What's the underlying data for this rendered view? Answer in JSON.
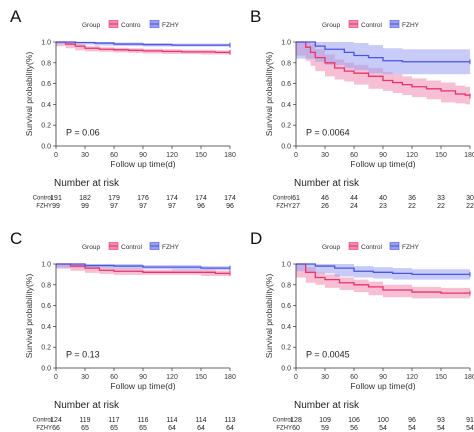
{
  "colors": {
    "control": "#e8336b",
    "fzhy": "#4a55e0",
    "control_band": "#f08ab0",
    "fzhy_band": "#9aa0f0"
  },
  "legend": {
    "title": "Group",
    "control_label": "Control",
    "fzhy_label": "FZHY"
  },
  "risk_row_labels": {
    "control": "Control",
    "fzhy": "FZHY"
  },
  "chart_data": [
    {
      "panel": "A",
      "type": "line",
      "legend_control_label": "Contro",
      "xlabel": "Follow up time(d)",
      "ylabel": "Survival probability(%)",
      "xlim": [
        0,
        180
      ],
      "ylim": [
        0,
        1
      ],
      "x_ticks": [
        0,
        30,
        60,
        90,
        120,
        150,
        180
      ],
      "y_ticks": [
        0.0,
        0.2,
        0.4,
        0.6,
        0.8,
        1.0
      ],
      "pvalue": "P = 0.06",
      "series": [
        {
          "name": "Control",
          "x": [
            0,
            10,
            20,
            30,
            45,
            60,
            75,
            90,
            110,
            130,
            150,
            165,
            180
          ],
          "y": [
            1.0,
            0.98,
            0.96,
            0.94,
            0.93,
            0.925,
            0.92,
            0.915,
            0.91,
            0.905,
            0.905,
            0.9,
            0.9
          ],
          "band": 0.02
        },
        {
          "name": "FZHY",
          "x": [
            0,
            20,
            40,
            60,
            90,
            120,
            150,
            180
          ],
          "y": [
            1.0,
            0.995,
            0.99,
            0.98,
            0.975,
            0.97,
            0.97,
            0.97
          ],
          "band": 0.015
        }
      ],
      "risk": {
        "title": "Number at risk",
        "control": [
          "191",
          "182",
          "179",
          "176",
          "174",
          "174",
          "174"
        ],
        "fzhy": [
          "99",
          "99",
          "97",
          "97",
          "97",
          "96",
          "96"
        ]
      }
    },
    {
      "panel": "B",
      "type": "line",
      "legend_control_label": "Control",
      "xlabel": "Follow up time(d)",
      "ylabel": "Survival probability(%)",
      "xlim": [
        0,
        180
      ],
      "ylim": [
        0,
        1
      ],
      "x_ticks": [
        0,
        30,
        60,
        90,
        120,
        150,
        180
      ],
      "y_ticks": [
        0.0,
        0.2,
        0.4,
        0.6,
        0.8,
        1.0
      ],
      "pvalue": "P = 0.0064",
      "series": [
        {
          "name": "Control",
          "x": [
            0,
            10,
            15,
            20,
            30,
            40,
            50,
            60,
            75,
            90,
            100,
            110,
            120,
            135,
            150,
            165,
            175,
            180
          ],
          "y": [
            1.0,
            0.95,
            0.9,
            0.85,
            0.8,
            0.75,
            0.72,
            0.7,
            0.67,
            0.63,
            0.61,
            0.59,
            0.57,
            0.55,
            0.53,
            0.5,
            0.49,
            0.48
          ],
          "band": 0.08
        },
        {
          "name": "FZHY",
          "x": [
            0,
            20,
            30,
            50,
            60,
            75,
            90,
            110,
            120,
            180
          ],
          "y": [
            1.0,
            0.96,
            0.93,
            0.9,
            0.87,
            0.85,
            0.82,
            0.81,
            0.81,
            0.81
          ],
          "band": 0.12
        }
      ],
      "risk": {
        "title": "Number at risk",
        "control": [
          "61",
          "46",
          "44",
          "40",
          "36",
          "33",
          "30"
        ],
        "fzhy": [
          "27",
          "26",
          "24",
          "23",
          "22",
          "22",
          "22"
        ]
      }
    },
    {
      "panel": "C",
      "type": "line",
      "legend_control_label": "Control",
      "xlabel": "Follow up time(d)",
      "ylabel": "Survival probability(%)",
      "xlim": [
        0,
        180
      ],
      "ylim": [
        0,
        1
      ],
      "x_ticks": [
        0,
        30,
        60,
        90,
        120,
        150,
        180
      ],
      "y_ticks": [
        0.0,
        0.2,
        0.4,
        0.6,
        0.8,
        1.0
      ],
      "pvalue": "P = 0.13",
      "series": [
        {
          "name": "Control",
          "x": [
            0,
            15,
            30,
            45,
            60,
            90,
            120,
            150,
            165,
            180
          ],
          "y": [
            1.0,
            0.98,
            0.96,
            0.94,
            0.93,
            0.92,
            0.92,
            0.92,
            0.91,
            0.91
          ],
          "band": 0.025
        },
        {
          "name": "FZHY",
          "x": [
            0,
            30,
            60,
            90,
            120,
            150,
            180
          ],
          "y": [
            1.0,
            0.985,
            0.98,
            0.97,
            0.97,
            0.96,
            0.96
          ],
          "band": 0.02
        }
      ],
      "risk": {
        "title": "Number at risk",
        "control": [
          "124",
          "119",
          "117",
          "116",
          "114",
          "114",
          "113"
        ],
        "fzhy": [
          "66",
          "65",
          "65",
          "65",
          "64",
          "64",
          "64"
        ]
      }
    },
    {
      "panel": "D",
      "type": "line",
      "legend_control_label": "Control",
      "xlabel": "Follow up time(d)",
      "ylabel": "Survival probability(%)",
      "xlim": [
        0,
        180
      ],
      "ylim": [
        0,
        1
      ],
      "x_ticks": [
        0,
        30,
        60,
        90,
        120,
        150,
        180
      ],
      "y_ticks": [
        0.0,
        0.2,
        0.4,
        0.6,
        0.8,
        1.0
      ],
      "pvalue": "P = 0.0045",
      "series": [
        {
          "name": "Control",
          "x": [
            0,
            10,
            20,
            30,
            45,
            60,
            75,
            90,
            120,
            150,
            180
          ],
          "y": [
            1.0,
            0.92,
            0.87,
            0.85,
            0.82,
            0.8,
            0.78,
            0.75,
            0.73,
            0.72,
            0.72
          ],
          "band": 0.05
        },
        {
          "name": "FZHY",
          "x": [
            0,
            20,
            40,
            60,
            80,
            100,
            120,
            150,
            180
          ],
          "y": [
            1.0,
            0.98,
            0.96,
            0.93,
            0.92,
            0.91,
            0.9,
            0.9,
            0.9
          ],
          "band": 0.05
        }
      ],
      "risk": {
        "title": "Number at risk",
        "control": [
          "128",
          "109",
          "106",
          "100",
          "96",
          "93",
          "91"
        ],
        "fzhy": [
          "60",
          "59",
          "56",
          "54",
          "54",
          "54",
          "54"
        ]
      }
    }
  ]
}
